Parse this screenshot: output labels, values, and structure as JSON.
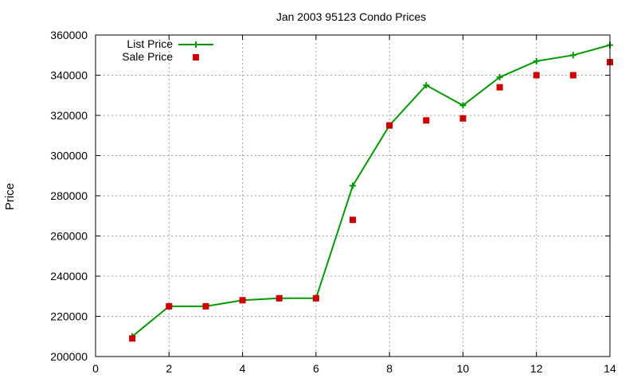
{
  "chart_data": {
    "type": "line",
    "title": "Jan 2003 95123 Condo Prices",
    "xlabel": "",
    "ylabel": "Price",
    "xlim": [
      0,
      14
    ],
    "ylim": [
      200000,
      360000
    ],
    "x_ticks": [
      0,
      2,
      4,
      6,
      8,
      10,
      12,
      14
    ],
    "y_ticks": [
      200000,
      220000,
      240000,
      260000,
      280000,
      300000,
      320000,
      340000,
      360000
    ],
    "grid": true,
    "legend_position": "top-left",
    "series": [
      {
        "name": "List Price",
        "style": "line-with-plus-markers",
        "color": "#009900",
        "x": [
          1,
          2,
          3,
          4,
          5,
          6,
          7,
          8,
          9,
          10,
          11,
          12,
          13,
          14
        ],
        "values": [
          210000,
          225000,
          225000,
          228000,
          229000,
          229000,
          285000,
          315000,
          335000,
          325000,
          339000,
          347000,
          350000,
          355000
        ]
      },
      {
        "name": "Sale Price",
        "style": "square-markers",
        "color": "#cc0000",
        "x": [
          1,
          2,
          3,
          4,
          5,
          6,
          7,
          8,
          9,
          10,
          11,
          12,
          13,
          14
        ],
        "values": [
          209000,
          225000,
          225000,
          228000,
          229000,
          229000,
          268000,
          315000,
          317500,
          318500,
          334000,
          340000,
          340000,
          346500
        ]
      }
    ]
  }
}
